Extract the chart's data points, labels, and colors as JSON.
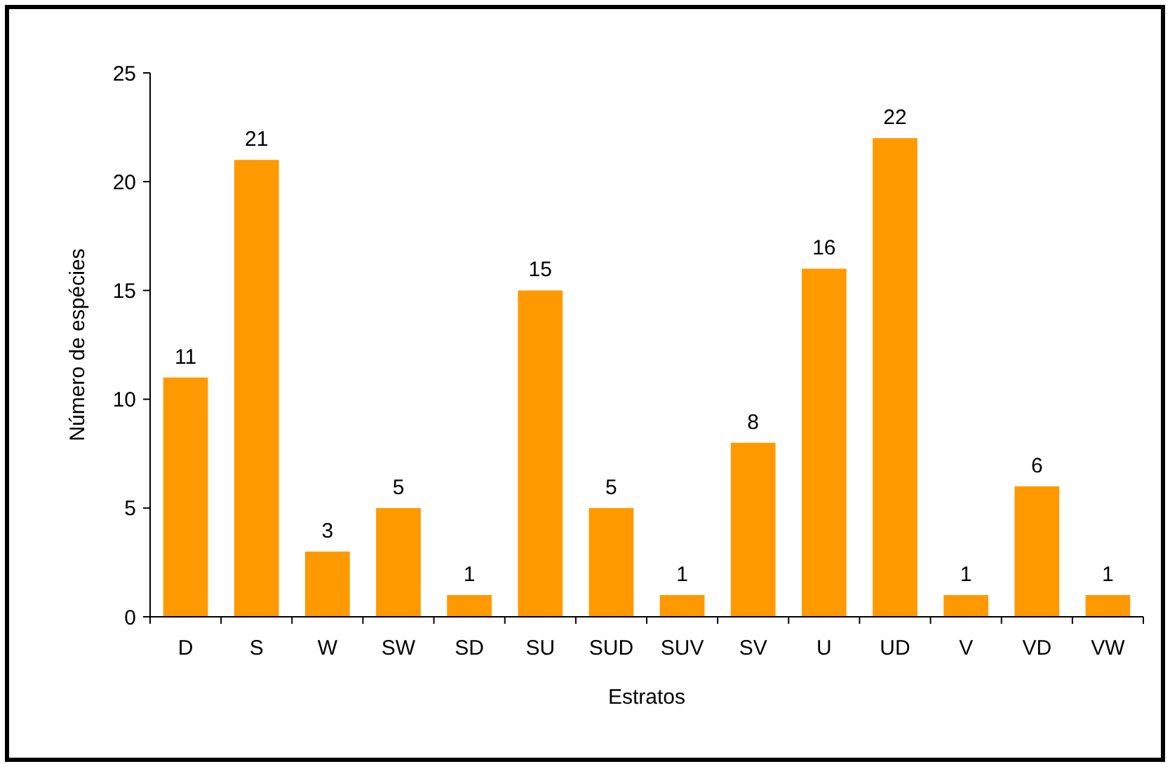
{
  "chart_data": {
    "type": "bar",
    "xlabel": "Estratos",
    "ylabel": "Número de espécies",
    "categories": [
      "D",
      "S",
      "W",
      "SW",
      "SD",
      "SU",
      "SUD",
      "SUV",
      "SV",
      "U",
      "UD",
      "V",
      "VD",
      "VW"
    ],
    "values": [
      11,
      21,
      3,
      5,
      1,
      15,
      5,
      1,
      8,
      16,
      22,
      1,
      6,
      1
    ],
    "color": "#ff9900",
    "ylim": [
      0,
      25
    ],
    "yticks": [
      0,
      5,
      10,
      15,
      20,
      25
    ],
    "data_labels": true
  }
}
